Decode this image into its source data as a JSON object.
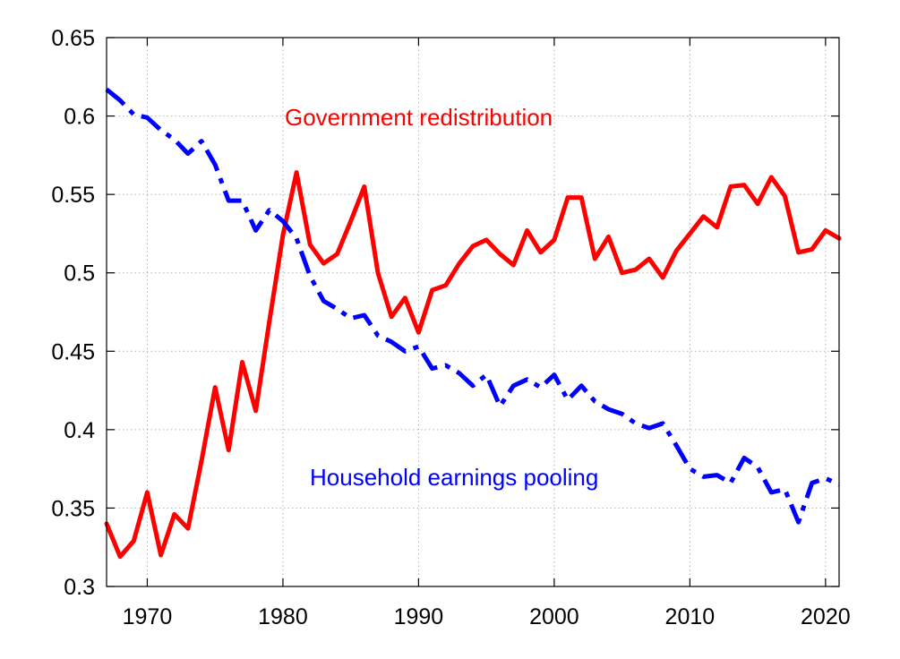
{
  "chart_data": {
    "type": "line",
    "xlim": [
      1967,
      2021
    ],
    "ylim": [
      0.3,
      0.65
    ],
    "xticks": [
      1970,
      1980,
      1990,
      2000,
      2010,
      2020
    ],
    "yticks": [
      0.3,
      0.35,
      0.4,
      0.45,
      0.5,
      0.55,
      0.6,
      0.65
    ],
    "ytick_labels": [
      "0.3",
      "0.35",
      "0.4",
      "0.45",
      "0.5",
      "0.55",
      "0.6",
      "0.65"
    ],
    "grid": true,
    "title": "",
    "xlabel": "",
    "ylabel": "",
    "x": [
      1967,
      1968,
      1969,
      1970,
      1971,
      1972,
      1973,
      1974,
      1975,
      1976,
      1977,
      1978,
      1979,
      1980,
      1981,
      1982,
      1983,
      1984,
      1985,
      1986,
      1987,
      1988,
      1989,
      1990,
      1991,
      1992,
      1993,
      1994,
      1995,
      1996,
      1997,
      1998,
      1999,
      2000,
      2001,
      2002,
      2003,
      2004,
      2005,
      2006,
      2007,
      2008,
      2009,
      2010,
      2011,
      2012,
      2013,
      2014,
      2015,
      2016,
      2017,
      2018,
      2019,
      2020,
      2021
    ],
    "series": [
      {
        "name": "Government redistribution",
        "color": "#ff0000",
        "style": "solid",
        "values": [
          0.34,
          0.319,
          0.329,
          0.36,
          0.32,
          0.346,
          0.337,
          0.38,
          0.427,
          0.387,
          0.443,
          0.412,
          0.469,
          0.524,
          0.564,
          0.518,
          0.506,
          0.512,
          0.533,
          0.555,
          0.5,
          0.472,
          0.484,
          0.462,
          0.489,
          0.492,
          0.506,
          0.517,
          0.521,
          0.512,
          0.505,
          0.527,
          0.513,
          0.521,
          0.548,
          0.548,
          0.509,
          0.523,
          0.5,
          0.502,
          0.509,
          0.497,
          0.514,
          0.525,
          0.536,
          0.529,
          0.555,
          0.556,
          0.544,
          0.561,
          0.549,
          0.513,
          0.515,
          0.527,
          0.522
        ]
      },
      {
        "name": "Household earnings pooling",
        "color": "#0000ff",
        "style": "dashdot",
        "values": [
          0.617,
          0.61,
          0.601,
          0.599,
          0.591,
          0.585,
          0.576,
          0.584,
          0.569,
          0.546,
          0.546,
          0.527,
          0.54,
          0.533,
          0.522,
          0.498,
          0.482,
          0.477,
          0.471,
          0.473,
          0.46,
          0.456,
          0.45,
          0.453,
          0.439,
          0.441,
          0.436,
          0.428,
          0.435,
          0.415,
          0.428,
          0.432,
          0.427,
          0.435,
          0.419,
          0.428,
          0.418,
          0.413,
          0.41,
          0.404,
          0.401,
          0.404,
          0.39,
          0.375,
          0.37,
          0.371,
          0.366,
          0.382,
          0.376,
          0.36,
          0.362,
          0.341,
          0.366,
          0.369,
          0.365
        ]
      }
    ]
  }
}
